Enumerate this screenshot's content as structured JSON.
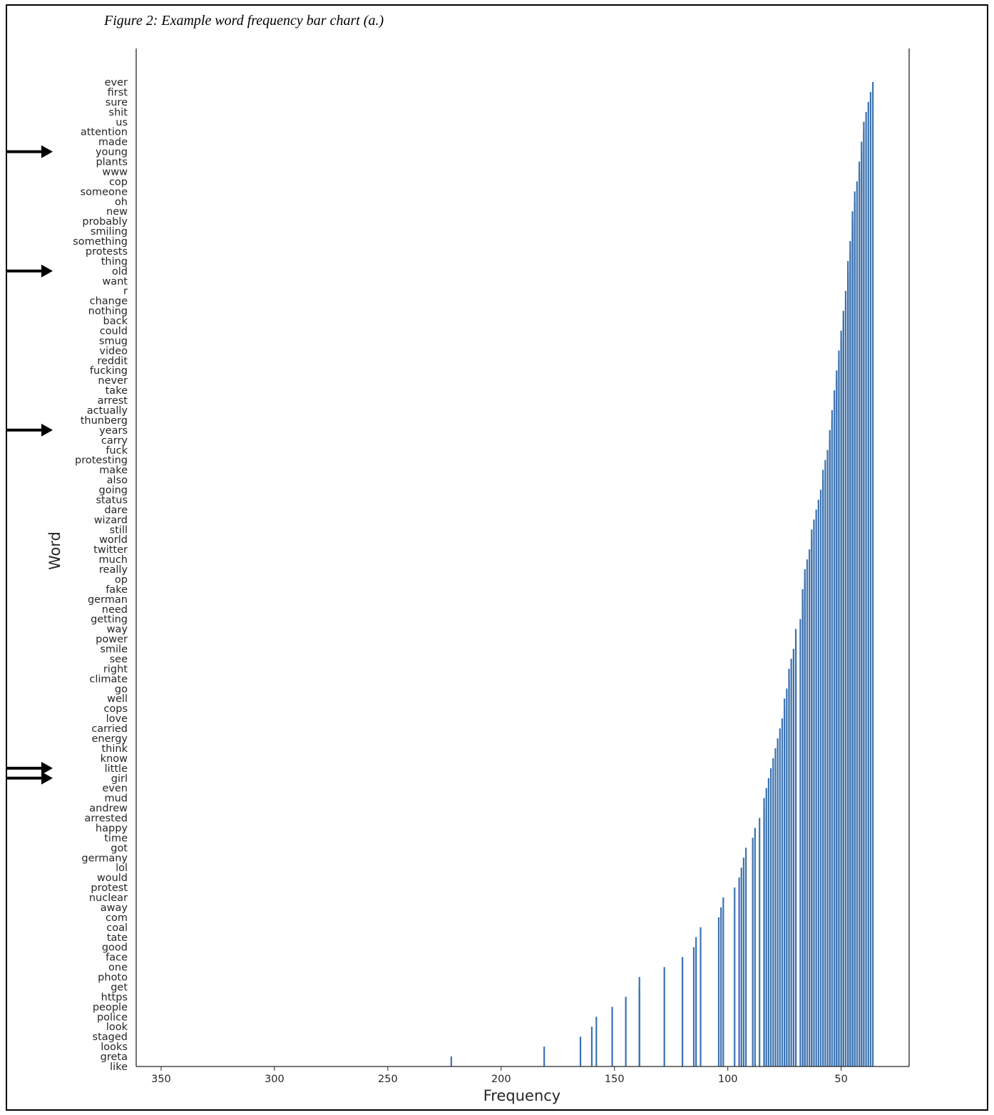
{
  "figure_caption": "Figure 2: Example word frequency bar chart (a.)",
  "colors": {
    "bar": "#3c72b0",
    "axis": "#262626",
    "arrow": "#000000"
  },
  "chart_data": {
    "type": "bar",
    "orientation": "horizontal",
    "title": "",
    "xlabel": "Frequency",
    "ylabel": "Word",
    "x_axis_inverted": true,
    "xlim": [
      361,
      20
    ],
    "x_ticks": [
      350,
      300,
      250,
      200,
      150,
      100,
      50
    ],
    "grid": false,
    "highlighted_words": [
      "young",
      "old",
      "years",
      "little",
      "girl"
    ],
    "categories": [
      "like",
      "greta",
      "looks",
      "staged",
      "look",
      "police",
      "people",
      "https",
      "get",
      "photo",
      "one",
      "face",
      "good",
      "tate",
      "coal",
      "com",
      "away",
      "nuclear",
      "protest",
      "would",
      "lol",
      "germany",
      "got",
      "time",
      "happy",
      "arrested",
      "andrew",
      "mud",
      "even",
      "girl",
      "little",
      "know",
      "think",
      "energy",
      "carried",
      "love",
      "cops",
      "well",
      "go",
      "climate",
      "right",
      "see",
      "smile",
      "power",
      "way",
      "getting",
      "need",
      "german",
      "fake",
      "op",
      "really",
      "much",
      "twitter",
      "world",
      "still",
      "wizard",
      "dare",
      "status",
      "going",
      "also",
      "make",
      "protesting",
      "fuck",
      "carry",
      "years",
      "thunberg",
      "actually",
      "arrest",
      "take",
      "never",
      "fucking",
      "reddit",
      "video",
      "smug",
      "could",
      "back",
      "nothing",
      "change",
      "r",
      "want",
      "old",
      "thing",
      "protests",
      "something",
      "smiling",
      "probably",
      "new",
      "oh",
      "someone",
      "cop",
      "www",
      "plants",
      "young",
      "made",
      "attention",
      "us",
      "shit",
      "sure",
      "first",
      "ever"
    ],
    "values": [
      229,
      222,
      181,
      165,
      160,
      158,
      151,
      145,
      139,
      139,
      128,
      120,
      115,
      114,
      112,
      104,
      103,
      102,
      97,
      95,
      94,
      93,
      92,
      89,
      88,
      86,
      84,
      84,
      83,
      82,
      81,
      80,
      79,
      78,
      77,
      76,
      75,
      75,
      74,
      73,
      73,
      72,
      71,
      70,
      70,
      68,
      67,
      67,
      67,
      66,
      66,
      65,
      64,
      63,
      63,
      62,
      61,
      60,
      59,
      58,
      58,
      57,
      56,
      55,
      55,
      54,
      54,
      53,
      53,
      52,
      52,
      51,
      51,
      50,
      50,
      49,
      49,
      48,
      48,
      47,
      47,
      47,
      46,
      46,
      45,
      45,
      45,
      44,
      44,
      43,
      42,
      42,
      41,
      41,
      40,
      40,
      39,
      38,
      37,
      36
    ]
  }
}
